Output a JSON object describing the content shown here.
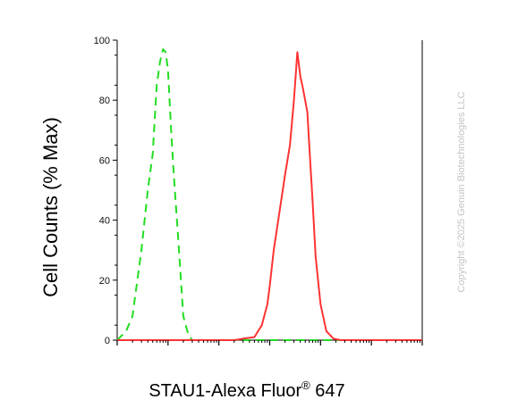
{
  "chart_data": {
    "type": "line",
    "xlabel": "STAU1-Alexa Fluor",
    "xlabel_superscript": "®",
    "xlabel_suffix": " 647",
    "ylabel": "Cell Counts (% Max)",
    "x_scale": "log",
    "xlim": [
      10,
      10000000
    ],
    "ylim": [
      0,
      100
    ],
    "y_ticks": [
      0,
      20,
      40,
      60,
      80,
      100
    ],
    "grid": false,
    "legend": "none",
    "series": [
      {
        "color": "#22dd22",
        "style": "dashed",
        "x": [
          10,
          15,
          20,
          30,
          40,
          50,
          60,
          70,
          80,
          90,
          100,
          115,
          130,
          160,
          200,
          250,
          300,
          600,
          2000,
          10000000
        ],
        "y": [
          0,
          3,
          8,
          30,
          50,
          62,
          85,
          93,
          97,
          96,
          90,
          70,
          55,
          33,
          8,
          2,
          0,
          0,
          0,
          0
        ]
      },
      {
        "color": "#ff3333",
        "style": "solid",
        "x": [
          10,
          2000,
          3000,
          5000,
          7000,
          9000,
          10000,
          12000,
          20000,
          25000,
          30000,
          35000,
          40000,
          45000,
          55000,
          60000,
          70000,
          80000,
          100000,
          130000,
          180000,
          250000,
          300000,
          450000,
          10000000
        ],
        "y": [
          0,
          0,
          0.5,
          1,
          5,
          12,
          18,
          30,
          55,
          65,
          80,
          96,
          88,
          84,
          76,
          65,
          46,
          28,
          12,
          3,
          0.5,
          0,
          0,
          0,
          0
        ]
      }
    ]
  },
  "watermark": "Copyright ©2025 Genuin Biotechnologies LLC"
}
